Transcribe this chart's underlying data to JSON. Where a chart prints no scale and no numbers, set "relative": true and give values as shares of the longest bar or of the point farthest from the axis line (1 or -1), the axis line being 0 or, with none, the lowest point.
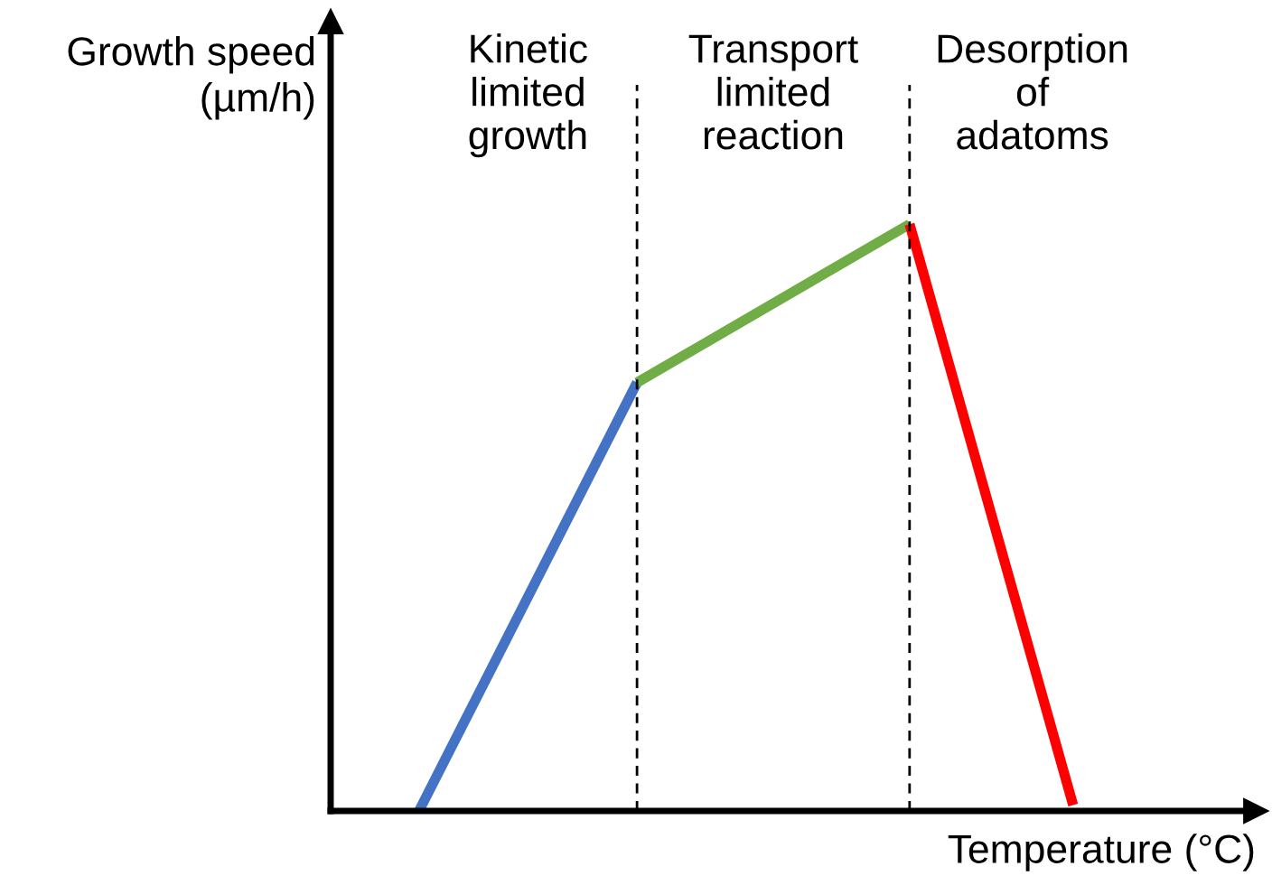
{
  "chart_data": {
    "type": "line",
    "relative": true,
    "xlabel": "Temperature (°C)",
    "ylabel": "Growth speed\n(µm/h)",
    "tick_labels": false,
    "marker": "none",
    "line_style": "solid",
    "categories": [
      null,
      null,
      null,
      null,
      null,
      null,
      null,
      null,
      null,
      null,
      null,
      null,
      null
    ],
    "series": [
      {
        "color": "#4472c4",
        "values": [
          0,
          null,
          null,
          null,
          0.73,
          null,
          null,
          null,
          null,
          null,
          null,
          null,
          null
        ]
      },
      {
        "color": "#70ad47",
        "values": [
          null,
          null,
          null,
          null,
          0.73,
          null,
          null,
          null,
          null,
          1,
          null,
          null,
          null
        ]
      },
      {
        "color": "#ff0000",
        "values": [
          null,
          null,
          null,
          null,
          null,
          null,
          null,
          null,
          null,
          1,
          null,
          null,
          0.01
        ]
      }
    ],
    "annotations": [
      "Kinetic\nlimited\ngrowth",
      "Transport\nlimited\nreaction",
      "Desorption\nof\nadatoms"
    ]
  }
}
